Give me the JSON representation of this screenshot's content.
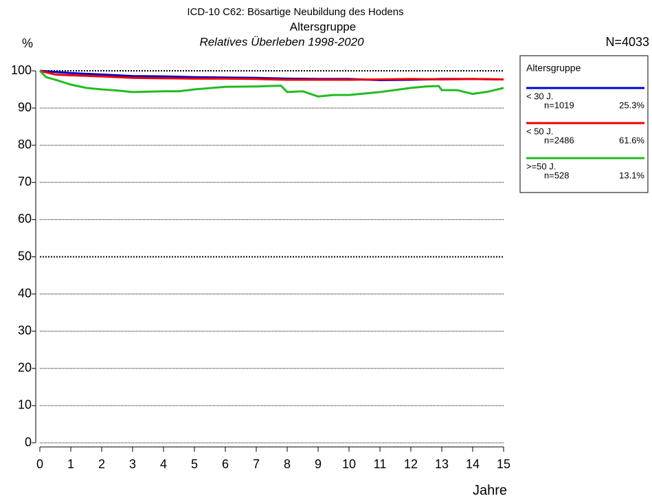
{
  "chart_data": {
    "type": "line",
    "title": "ICD-10 C62: Bösartige Neubildung des Hodens",
    "subtitle": "Altersgruppe",
    "subtitle2": "Relatives Überleben 1998-2020",
    "y_label": "%",
    "x_label": "Jahre",
    "total_label": "N=4033",
    "legend_title": "Altersgruppe",
    "xlim": [
      0,
      15
    ],
    "xticks": [
      0,
      1,
      2,
      3,
      4,
      5,
      6,
      7,
      8,
      9,
      10,
      11,
      12,
      13,
      14,
      15
    ],
    "ylim": [
      0,
      100
    ],
    "yticks": [
      0,
      10,
      20,
      30,
      40,
      50,
      60,
      70,
      80,
      90,
      100
    ],
    "grid": true,
    "reference_lines": [
      50,
      100
    ],
    "legend": "right",
    "series": [
      {
        "name": "< 30 J.",
        "n_label": "n=1019",
        "share_label": "25.3%",
        "color": "#0000cc",
        "x": [
          0,
          1,
          2,
          3,
          4,
          5,
          6,
          7,
          8,
          9,
          10,
          11,
          12,
          13,
          14,
          15
        ],
        "values": [
          100,
          99.4,
          99.0,
          98.6,
          98.5,
          98.3,
          98.2,
          98.1,
          97.9,
          97.8,
          97.8,
          97.5,
          97.6,
          97.8,
          97.8,
          97.7
        ]
      },
      {
        "name": "< 50 J.",
        "n_label": "n=2486",
        "share_label": "61.6%",
        "color": "#ee0000",
        "x": [
          0,
          0.5,
          1,
          2,
          3,
          4,
          5,
          6,
          7,
          8,
          9,
          10,
          11,
          12,
          13,
          14,
          15
        ],
        "values": [
          100,
          99.0,
          98.8,
          98.5,
          98.1,
          98.0,
          97.9,
          97.9,
          97.8,
          97.6,
          97.6,
          97.6,
          97.7,
          97.8,
          97.7,
          97.8,
          97.7
        ]
      },
      {
        "name": ">=50 J.",
        "n_label": "n=528",
        "share_label": "13.1%",
        "color": "#22bb22",
        "x": [
          0,
          0.2,
          0.5,
          1,
          1.5,
          2,
          2.5,
          3,
          4,
          4.5,
          5,
          6,
          7,
          7.8,
          8,
          8.5,
          9,
          9.5,
          10,
          11,
          12,
          12.5,
          12.9,
          13,
          13.5,
          14,
          14.5,
          15
        ],
        "values": [
          100,
          98.3,
          97.6,
          96.3,
          95.4,
          95.0,
          94.7,
          94.3,
          94.5,
          94.5,
          95.0,
          95.7,
          95.8,
          96.0,
          94.3,
          94.5,
          93.1,
          93.5,
          93.5,
          94.3,
          95.4,
          95.8,
          95.9,
          94.8,
          94.8,
          93.8,
          94.4,
          95.4
        ]
      }
    ]
  }
}
